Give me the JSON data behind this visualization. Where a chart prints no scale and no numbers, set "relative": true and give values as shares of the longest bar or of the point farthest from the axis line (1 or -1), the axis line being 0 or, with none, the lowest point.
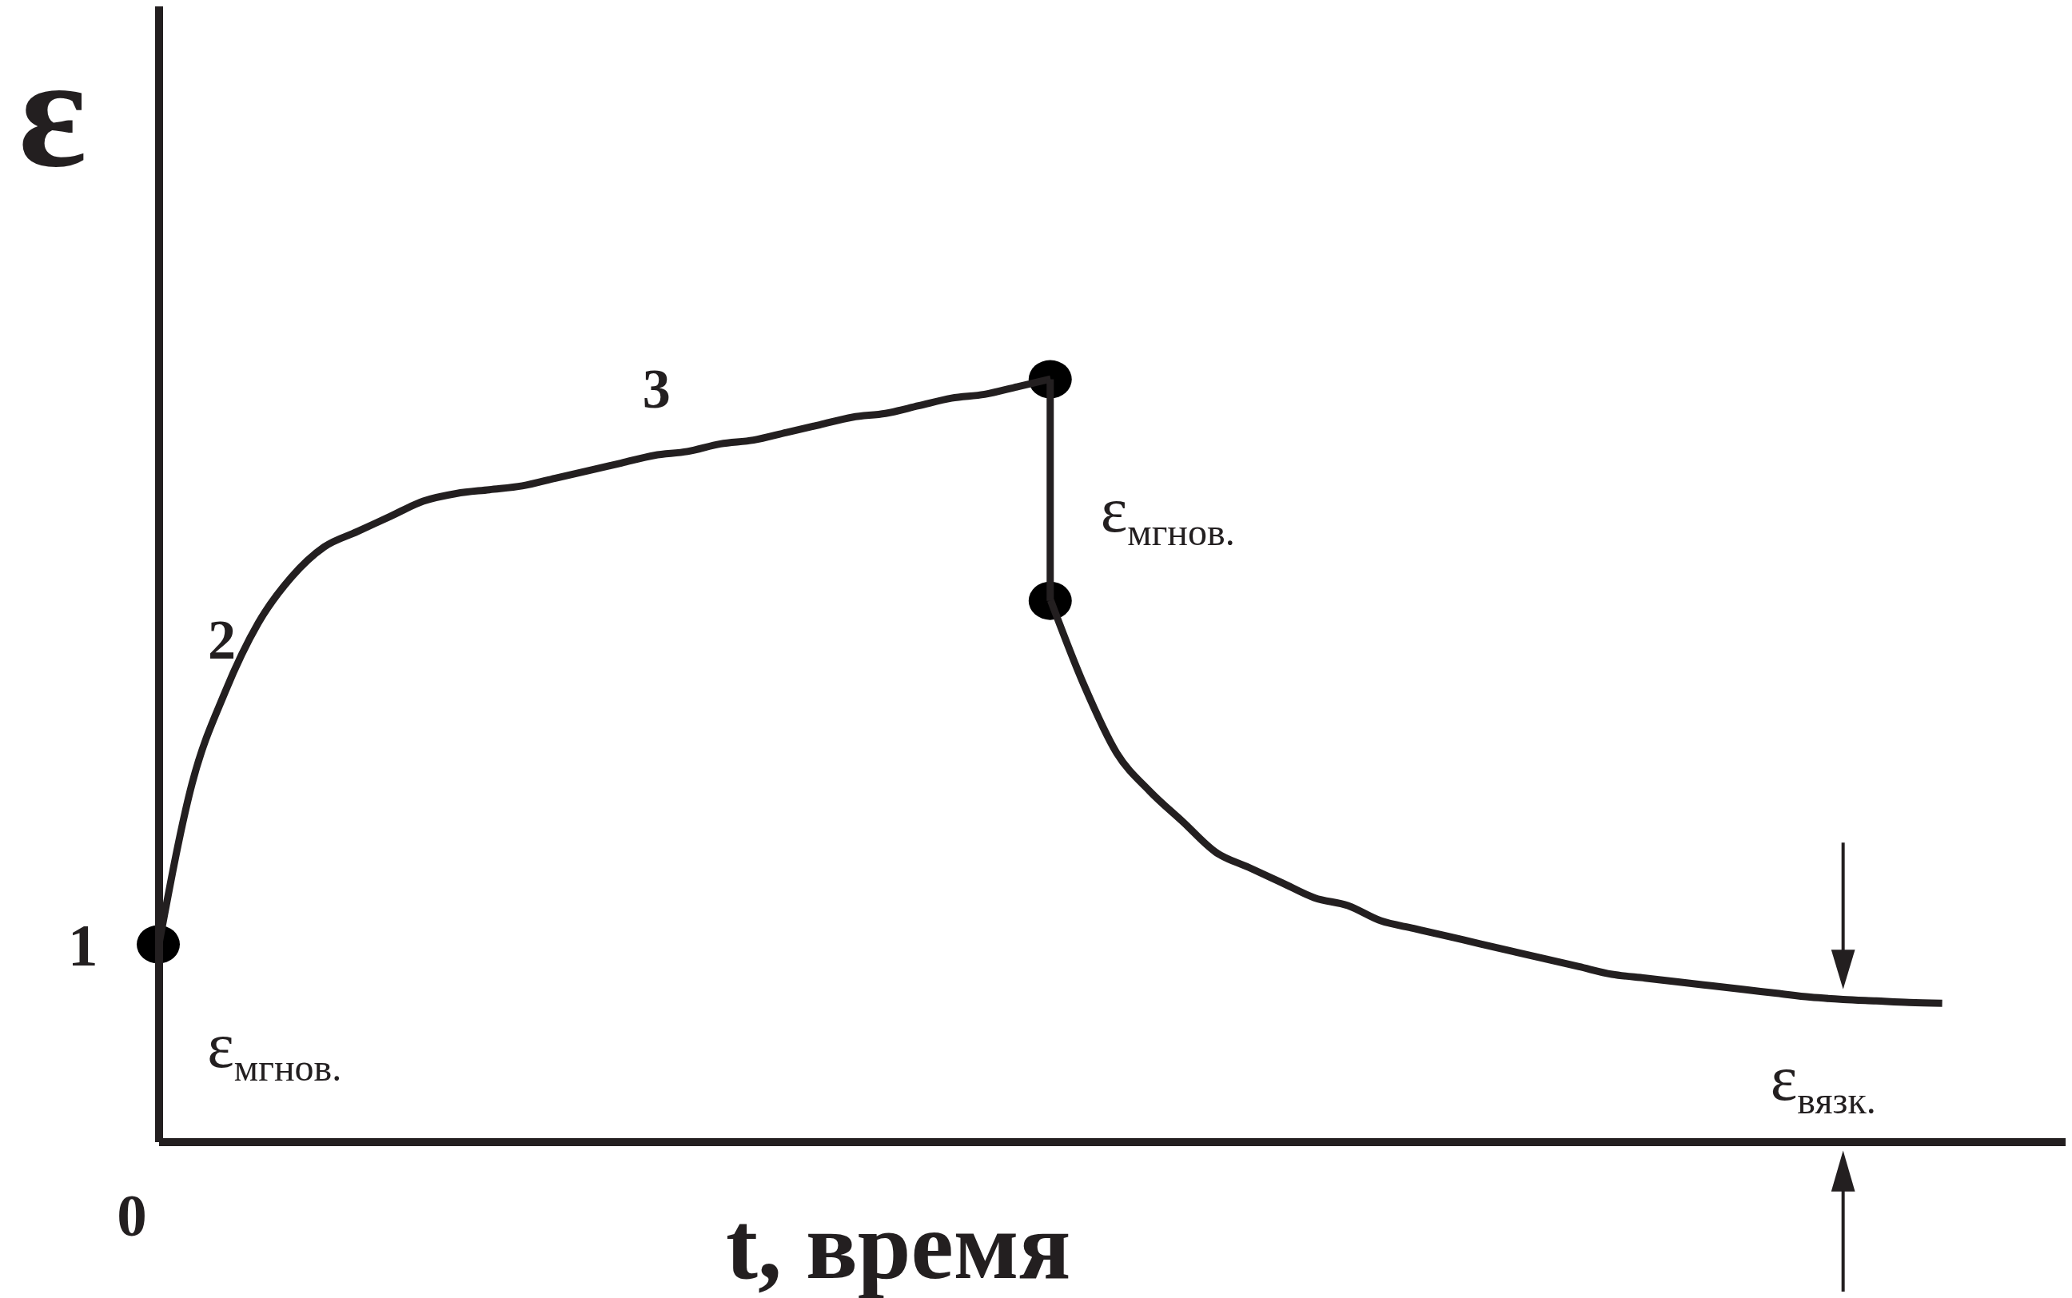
{
  "chart_data": {
    "type": "line",
    "relative": true,
    "xlabel": "t, время",
    "ylabel": "ε",
    "line_style": "solid",
    "categories": [
      null,
      null,
      null,
      null,
      null,
      null,
      null,
      null,
      null,
      null,
      null,
      null,
      null,
      null,
      null,
      null,
      null,
      null,
      null,
      null,
      null,
      null,
      null,
      null,
      null,
      null,
      null,
      null,
      null,
      null,
      null,
      null,
      null,
      null,
      null,
      null,
      null,
      null,
      null,
      null,
      null,
      null,
      null,
      null,
      null,
      null,
      null,
      null,
      null,
      null,
      null,
      null,
      null,
      null,
      null
    ],
    "series": [
      {
        "color": "#231f20",
        "values": [
          0.26,
          0.47,
          0.59,
          0.68,
          0.74,
          0.78,
          0.8,
          0.82,
          0.84,
          0.85,
          0.855,
          0.86,
          0.87,
          0.88,
          0.89,
          0.9,
          0.905,
          0.915,
          0.92,
          0.93,
          0.94,
          0.95,
          0.955,
          0.965,
          0.975,
          0.98,
          0.99,
          1,
          null,
          null,
          null,
          null,
          null,
          null,
          null,
          null,
          null,
          null,
          null,
          null,
          null,
          null,
          null,
          null,
          null,
          null,
          null,
          null,
          null,
          null,
          null,
          null,
          null,
          null,
          null
        ]
      },
      {
        "color": "#231f20",
        "values": [
          null,
          null,
          null,
          null,
          null,
          null,
          null,
          null,
          null,
          null,
          null,
          null,
          null,
          null,
          null,
          null,
          null,
          null,
          null,
          null,
          null,
          null,
          null,
          null,
          null,
          null,
          null,
          0.71,
          0.6,
          0.51,
          0.46,
          0.42,
          0.38,
          0.36,
          0.34,
          0.32,
          0.31,
          0.29,
          0.28,
          0.27,
          0.26,
          0.25,
          0.24,
          0.23,
          0.22,
          0.215,
          0.21,
          0.205,
          0.2,
          0.195,
          0.19,
          0.187,
          0.185,
          0.183,
          0.182
        ]
      }
    ],
    "annotations": [
      "0",
      "1",
      "2",
      "3",
      "ε$_{мгнов.}$",
      "ε$_{мгнов.}$",
      "ε$_{вязк.}$"
    ]
  }
}
